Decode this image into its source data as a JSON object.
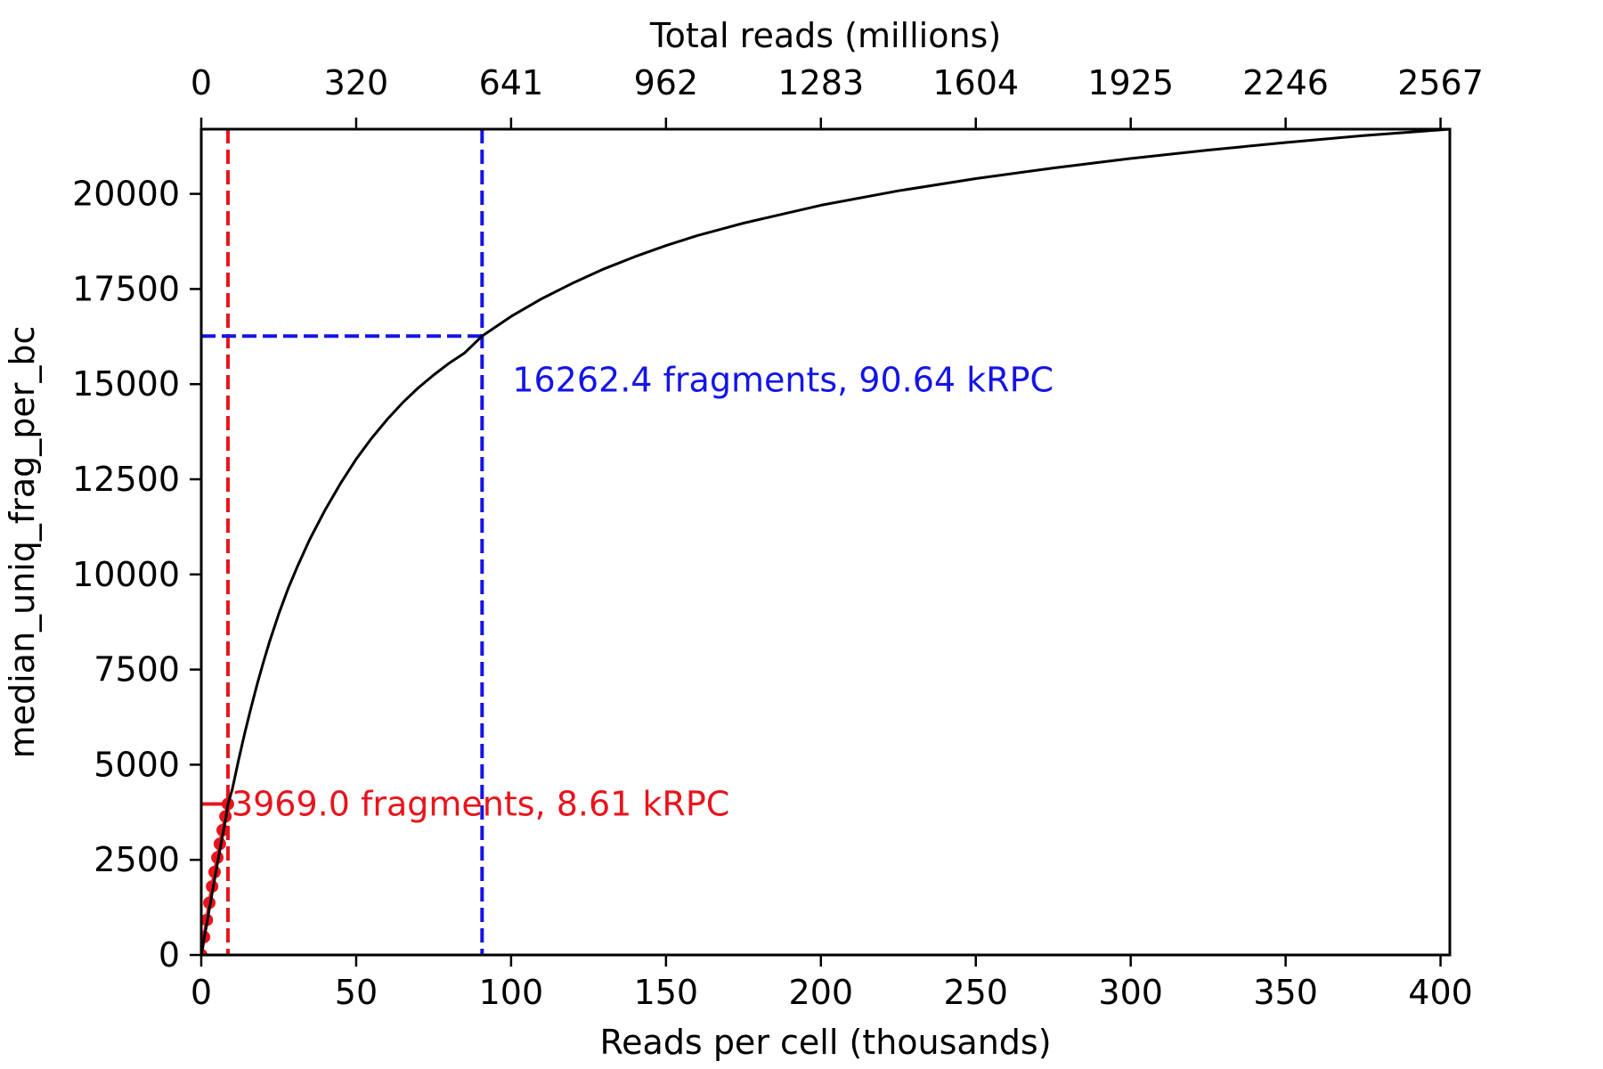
{
  "chart_data": {
    "type": "line",
    "xlabel": "Reads per cell (thousands)",
    "x2label": "Total reads (millions)",
    "ylabel": "median_uniq_frag_per_bc",
    "xlim": [
      0,
      403
    ],
    "ylim": [
      0,
      21700
    ],
    "x_ticks": [
      0,
      50,
      100,
      150,
      200,
      250,
      300,
      350,
      400
    ],
    "y_ticks": [
      0,
      2500,
      5000,
      7500,
      10000,
      12500,
      15000,
      17500,
      20000
    ],
    "x2_ticks": [
      {
        "x": 0,
        "label": "0"
      },
      {
        "x": 50,
        "label": "320"
      },
      {
        "x": 100,
        "label": "641"
      },
      {
        "x": 150,
        "label": "962"
      },
      {
        "x": 200,
        "label": "1283"
      },
      {
        "x": 250,
        "label": "1604"
      },
      {
        "x": 300,
        "label": "1925"
      },
      {
        "x": 350,
        "label": "2246"
      },
      {
        "x": 400,
        "label": "2567"
      }
    ],
    "colors": {
      "fit": "#000000",
      "observed": "#e8141c",
      "target": "#1414e8"
    },
    "fit_curve": {
      "x": [
        0,
        2,
        4,
        6,
        8,
        8.61,
        10,
        12,
        14,
        16,
        18,
        20,
        22,
        25,
        28,
        31,
        35,
        40,
        45,
        50,
        55,
        60,
        65,
        70,
        75,
        80,
        85,
        90.64,
        100,
        110,
        120,
        130,
        140,
        150,
        160,
        175,
        200,
        225,
        250,
        275,
        300,
        325,
        350,
        375,
        403
      ],
      "y": [
        0,
        930,
        1850,
        2760,
        3620,
        3969,
        4350,
        5100,
        5820,
        6480,
        7100,
        7680,
        8220,
        8960,
        9620,
        10200,
        10920,
        11700,
        12400,
        13030,
        13580,
        14070,
        14510,
        14900,
        15240,
        15550,
        15820,
        16262,
        16780,
        17250,
        17660,
        18030,
        18350,
        18640,
        18900,
        19230,
        19700,
        20080,
        20400,
        20680,
        20930,
        21150,
        21350,
        21530,
        21700
      ]
    },
    "observed_points": {
      "x": [
        0,
        0.9,
        1.8,
        2.6,
        3.5,
        4.3,
        5.2,
        6.0,
        6.9,
        7.8,
        8.61
      ],
      "y": [
        0,
        470,
        920,
        1370,
        1800,
        2180,
        2560,
        2920,
        3280,
        3640,
        3969
      ]
    },
    "markers": [
      {
        "x": 8.61,
        "y": 3969.0,
        "label": "3969.0 fragments, 8.61 kRPC",
        "color": "red"
      },
      {
        "x": 90.64,
        "y": 16262.4,
        "label": "16262.4 fragments, 90.64 kRPC",
        "color": "blue"
      }
    ]
  }
}
